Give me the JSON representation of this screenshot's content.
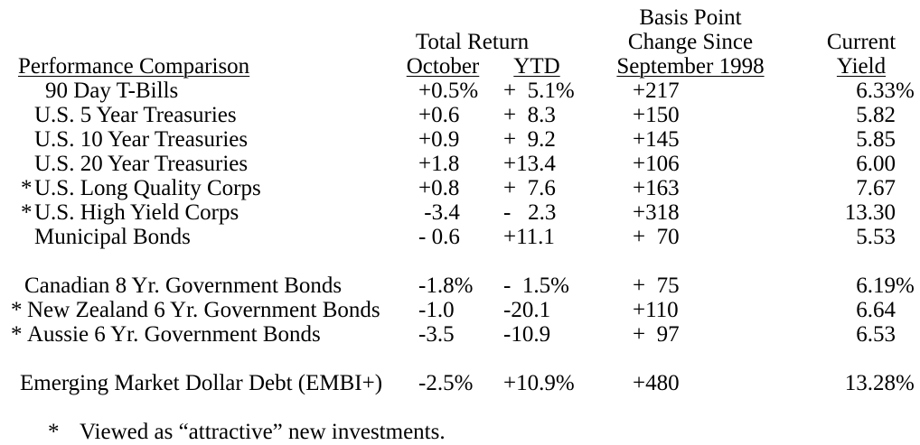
{
  "table": {
    "headers": {
      "basis_point_line1": "Basis Point",
      "total_return": "Total Return",
      "change_since": "Change Since",
      "current": "Current",
      "performance_comparison": "Performance Comparison",
      "october": "October",
      "ytd": "YTD",
      "september_1998": "September 1998",
      "yield": "Yield"
    },
    "rows": [
      {
        "star": "",
        "label": "90 Day T-Bills",
        "october": "+0.5%",
        "ytd": "+  5.1%",
        "bp_change": "+217",
        "yield_num": "6.33",
        "yield_suffix": "%"
      },
      {
        "star": "",
        "label": "U.S. 5 Year Treasuries",
        "october": "+0.6",
        "ytd": "+  8.3",
        "bp_change": "+150",
        "yield_num": "5.82",
        "yield_suffix": ""
      },
      {
        "star": "",
        "label": "U.S. 10 Year Treasuries",
        "october": "+0.9",
        "ytd": "+  9.2",
        "bp_change": "+145",
        "yield_num": "5.85",
        "yield_suffix": ""
      },
      {
        "star": "",
        "label": "U.S. 20 Year Treasuries",
        "october": "+1.8",
        "ytd": "+13.4",
        "bp_change": "+106",
        "yield_num": "6.00",
        "yield_suffix": ""
      },
      {
        "star": "*",
        "label": "U.S. Long Quality Corps",
        "october": "+0.8",
        "ytd": "+  7.6",
        "bp_change": "+163",
        "yield_num": "7.67",
        "yield_suffix": ""
      },
      {
        "star": "*",
        "label": "U.S. High Yield Corps",
        "october": " -3.4",
        "ytd": "-   2.3",
        "bp_change": "+318",
        "yield_num": "13.30",
        "yield_suffix": ""
      },
      {
        "star": "",
        "label": "Municipal Bonds",
        "october": "- 0.6",
        "ytd": "+11.1",
        "bp_change": "+  70",
        "yield_num": "5.53",
        "yield_suffix": ""
      },
      {
        "star": "",
        "label": "Canadian 8 Yr. Government Bonds",
        "october": "-1.8%",
        "ytd": "-  1.5%",
        "bp_change": "+  75",
        "yield_num": "6.19",
        "yield_suffix": "%"
      },
      {
        "star": "*",
        "label": "New Zealand 6 Yr. Government Bonds",
        "october": "-1.0",
        "ytd": "-20.1",
        "bp_change": "+110",
        "yield_num": "6.64",
        "yield_suffix": ""
      },
      {
        "star": "*",
        "label": "Aussie 6 Yr. Government Bonds",
        "october": "-3.5",
        "ytd": "-10.9",
        "bp_change": "+  97",
        "yield_num": "6.53",
        "yield_suffix": ""
      },
      {
        "star": "",
        "label": "Emerging Market Dollar Debt (EMBI+)",
        "october": "-2.5%",
        "ytd": "+10.9%",
        "bp_change": "+480",
        "yield_num": "13.28",
        "yield_suffix": "%"
      }
    ]
  },
  "footnote": {
    "star": "*",
    "text": "Viewed as “attractive” new investments."
  }
}
